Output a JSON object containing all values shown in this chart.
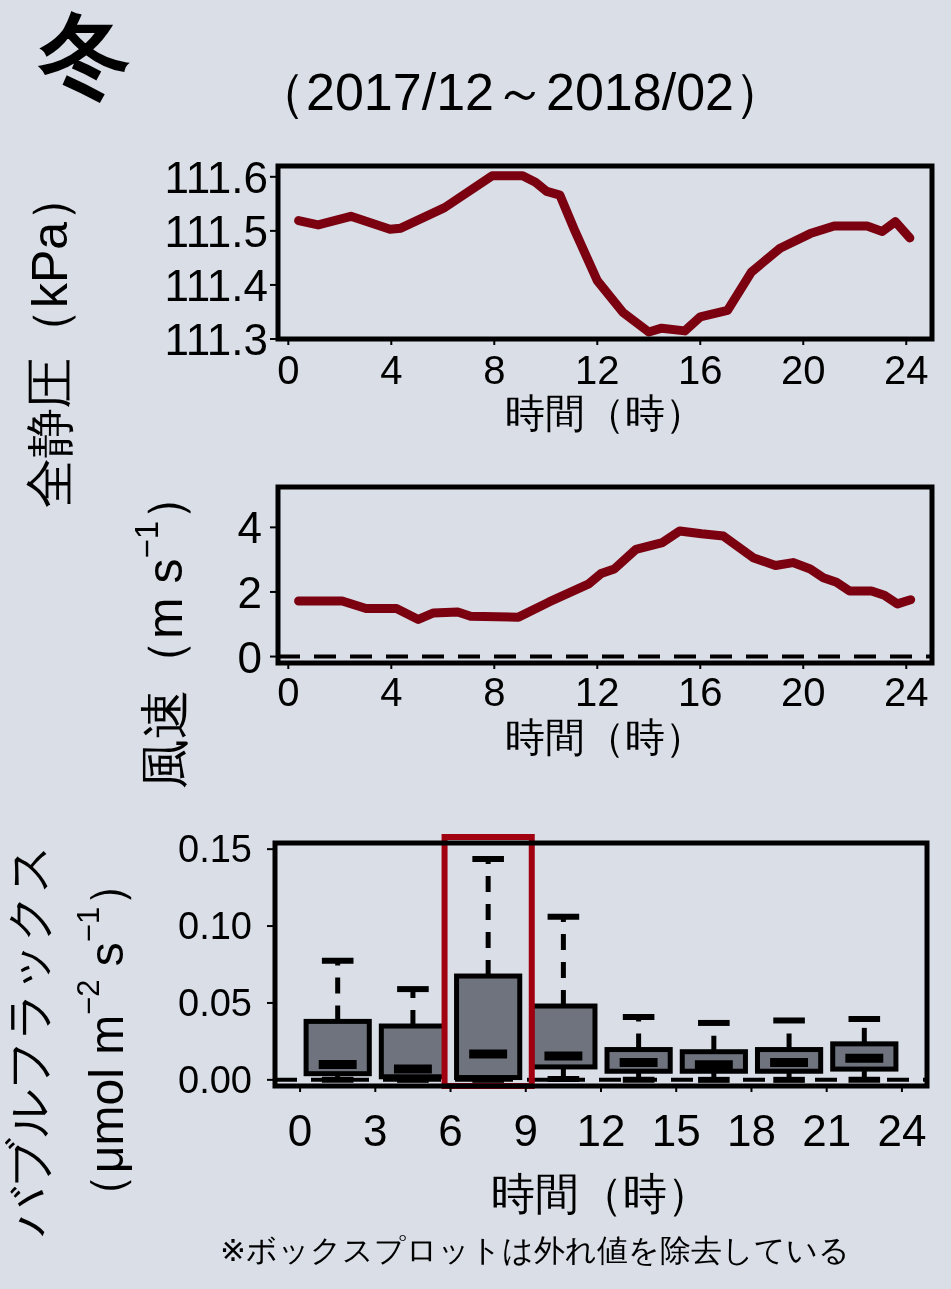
{
  "chart_data": [
    {
      "type": "line",
      "title": "冬",
      "subtitle": "（2017/12～2018/02）",
      "xlabel": "時間（時）",
      "ylabel": "全静圧（kPa）",
      "series": [
        {
          "color": "#7b0010",
          "x": [
            0.4,
            1.16,
            2.43,
            3.95,
            4.37,
            6.07,
            7.92,
            9.1,
            9.6,
            10.04,
            10.55,
            11.14,
            12.0,
            13.0,
            14.0,
            14.5,
            15.4,
            16.0,
            17.06,
            17.99,
            19.1,
            20.27,
            21.2,
            22.48,
            23.07,
            23.58,
            24.14
          ],
          "values": [
            111.519,
            111.511,
            111.527,
            111.503,
            111.505,
            111.543,
            111.602,
            111.602,
            111.59,
            111.573,
            111.566,
            111.499,
            111.408,
            111.349,
            111.313,
            111.32,
            111.315,
            111.341,
            111.353,
            111.424,
            111.468,
            111.495,
            111.509,
            111.509,
            111.499,
            111.517,
            111.487
          ]
        }
      ],
      "xlim": [
        -0.4,
        25
      ],
      "ylim": [
        111.3,
        111.62
      ],
      "xticks": [
        0,
        4,
        8,
        12,
        16,
        20,
        24
      ],
      "yticks": [
        111.3,
        111.4,
        111.5,
        111.6
      ],
      "grid": false,
      "line_style": "solid"
    },
    {
      "type": "line",
      "xlabel": "時間（時）",
      "ylabel": "風速（m s$^{−1}$）",
      "series": [
        {
          "color": "#7b0010",
          "x": [
            0.4,
            2.09,
            3.02,
            4.2,
            5.05,
            5.64,
            6.58,
            7.08,
            8.94,
            10.13,
            11.65,
            12.15,
            12.66,
            13.5,
            14.53,
            15.2,
            16.05,
            16.9,
            18.08,
            18.92,
            19.6,
            20.27,
            20.78,
            21.29,
            21.8,
            22.65,
            23.15,
            23.66,
            24.17
          ],
          "values": [
            1.72,
            1.72,
            1.49,
            1.49,
            1.15,
            1.35,
            1.38,
            1.25,
            1.22,
            1.69,
            2.24,
            2.57,
            2.71,
            3.32,
            3.53,
            3.89,
            3.8,
            3.73,
            3.05,
            2.82,
            2.91,
            2.71,
            2.44,
            2.3,
            2.03,
            2.03,
            1.9,
            1.63,
            1.76
          ]
        }
      ],
      "ref_lines": [
        {
          "axis": "y",
          "value": 0,
          "line_style": "dashed"
        }
      ],
      "xlim": [
        -0.4,
        25
      ],
      "ylim": [
        -0.2,
        5.25
      ],
      "xticks": [
        0,
        4,
        8,
        12,
        16,
        20,
        24
      ],
      "yticks": [
        0,
        2,
        4
      ],
      "grid": false,
      "line_style": "solid"
    },
    {
      "type": "box",
      "xlabel": "時間（時）",
      "ylabel": [
        "バブルフラックス",
        "（μmol m$^{−2}$ s$^{−1}$）"
      ],
      "color": "#6e737e",
      "x": [
        1.5,
        4.5,
        7.5,
        10.5,
        13.5,
        16.5,
        19.5,
        22.5
      ],
      "boxes": [
        {
          "low": 0,
          "q1": 0.004,
          "median": 0.0099,
          "q3": 0.038,
          "high": 0.0775
        },
        {
          "low": 0,
          "q1": 0.002,
          "median": 0.007,
          "q3": 0.035,
          "high": 0.059
        },
        {
          "low": 0,
          "q1": 0.0015,
          "median": 0.0168,
          "q3": 0.0675,
          "high": 0.1436
        },
        {
          "low": 0.0006,
          "q1": 0.0084,
          "median": 0.0155,
          "q3": 0.048,
          "high": 0.106
        },
        {
          "low": 0,
          "q1": 0.0056,
          "median": 0.0113,
          "q3": 0.0197,
          "high": 0.0408
        },
        {
          "low": 0,
          "q1": 0.0056,
          "median": 0.0098,
          "q3": 0.0183,
          "high": 0.037
        },
        {
          "low": 0,
          "q1": 0.0056,
          "median": 0.0113,
          "q3": 0.0197,
          "high": 0.0386
        },
        {
          "low": 0,
          "q1": 0.007,
          "median": 0.014,
          "q3": 0.0234,
          "high": 0.0395
        }
      ],
      "ref_lines": [
        {
          "axis": "y",
          "value": 0,
          "line_style": "dashed"
        }
      ],
      "annotations": [
        "※ボックスプロットは外れ値を除去している"
      ],
      "xlim": [
        -1,
        25
      ],
      "ylim": [
        -0.004,
        0.154
      ],
      "xticks": [
        0,
        3,
        6,
        9,
        12,
        15,
        18,
        21,
        24
      ],
      "yticks": [
        {
          "value": 0,
          "label": "0.00"
        },
        {
          "value": 0.05,
          "label": "0.05"
        },
        {
          "value": 0.1,
          "label": "0.10"
        },
        {
          "value": 0.15,
          "label": "0.15"
        }
      ],
      "grid": false
    }
  ]
}
